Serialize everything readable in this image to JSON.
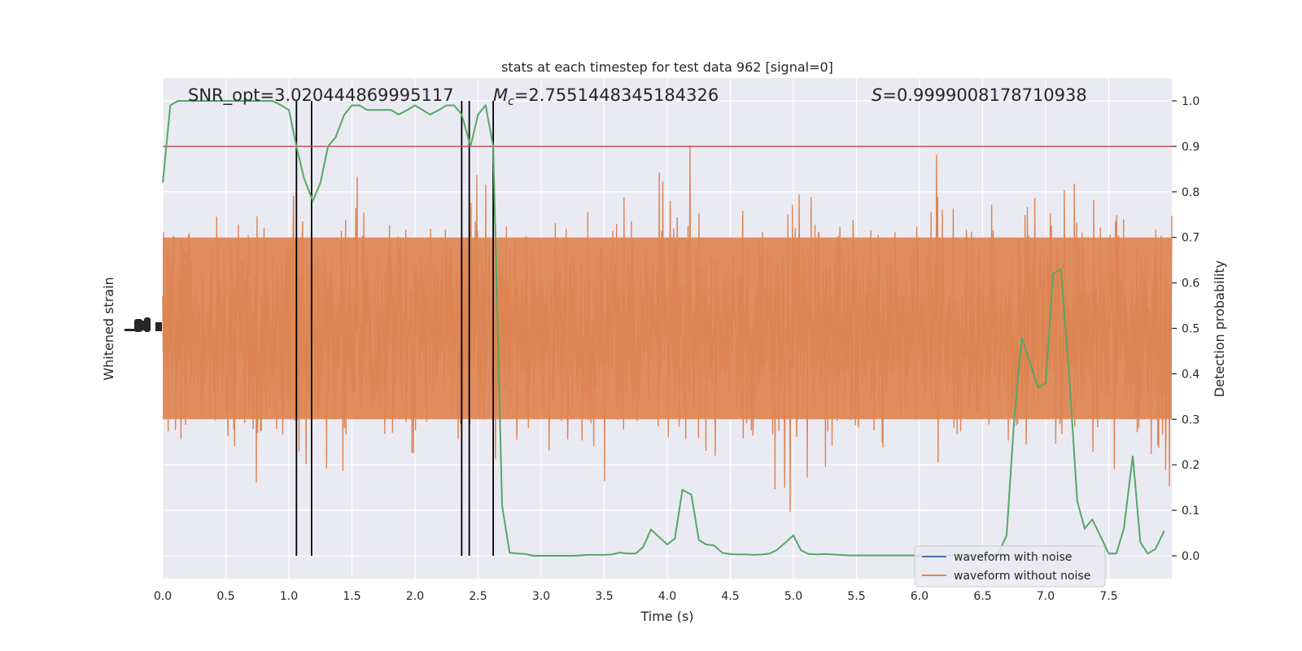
{
  "chart_data": {
    "type": "line",
    "title": "stats at each timestep for test data 962 [signal=0]",
    "xlabel": "Time (s)",
    "ylabel_left": "Whitened strain",
    "ylabel_right": "Detection probability",
    "xlim": [
      0,
      8
    ],
    "ylim_right": [
      -0.05,
      1.05
    ],
    "x_ticks": [
      "0.0",
      "0.5",
      "1.0",
      "1.5",
      "2.0",
      "2.5",
      "3.0",
      "3.5",
      "4.0",
      "4.5",
      "5.0",
      "5.5",
      "6.0",
      "6.5",
      "7.0",
      "7.5"
    ],
    "y_ticks_right": [
      "0.0",
      "0.1",
      "0.2",
      "0.3",
      "0.4",
      "0.5",
      "0.6",
      "0.7",
      "0.8",
      "0.9",
      "1.0"
    ],
    "grid": true,
    "annotations": {
      "snr": "SNR_opt=3.020444869995117",
      "mc_symbol": "M",
      "mc_sub": "c",
      "mc_value": "=2.7551448345184326",
      "s_symbol": "S",
      "s_value": "=0.9999008178710938"
    },
    "threshold": 0.9,
    "vlines": [
      1.06,
      1.18,
      2.37,
      2.43,
      2.62
    ],
    "series": [
      {
        "name": "waveform with noise",
        "color": "#4c72b0",
        "values": []
      },
      {
        "name": "waveform without noise",
        "color": "#dd8452",
        "values": []
      }
    ],
    "detection_probability": {
      "color": "#55a868",
      "x": [
        0.0,
        0.06,
        0.12,
        0.19,
        0.25,
        0.31,
        0.37,
        0.44,
        0.5,
        0.56,
        0.62,
        0.69,
        0.75,
        0.81,
        0.87,
        0.94,
        1.0,
        1.06,
        1.12,
        1.19,
        1.25,
        1.31,
        1.37,
        1.44,
        1.5,
        1.56,
        1.62,
        1.69,
        1.75,
        1.81,
        1.87,
        1.94,
        2.0,
        2.06,
        2.12,
        2.19,
        2.25,
        2.31,
        2.37,
        2.44,
        2.5,
        2.56,
        2.62,
        2.69,
        2.75,
        2.81,
        2.87,
        2.94,
        3.0,
        3.06,
        3.12,
        3.19,
        3.25,
        3.31,
        3.37,
        3.44,
        3.5,
        3.56,
        3.62,
        3.69,
        3.75,
        3.81,
        3.87,
        3.94,
        4.0,
        4.06,
        4.12,
        4.19,
        4.25,
        4.31,
        4.37,
        4.44,
        4.5,
        4.56,
        4.62,
        4.69,
        4.75,
        4.81,
        4.87,
        4.94,
        5.0,
        5.06,
        5.12,
        5.19,
        5.25,
        5.31,
        5.37,
        5.44,
        5.5,
        5.56,
        5.62,
        5.69,
        5.75,
        5.81,
        5.87,
        5.94,
        6.0,
        6.06,
        6.12,
        6.19,
        6.25,
        6.31,
        6.37,
        6.44,
        6.5,
        6.56,
        6.62,
        6.69,
        6.75,
        6.81,
        6.87,
        6.94,
        7.0,
        7.06,
        7.12,
        7.19,
        7.25,
        7.31,
        7.37,
        7.44,
        7.5,
        7.56,
        7.62,
        7.69,
        7.75,
        7.81,
        7.87,
        7.94
      ],
      "y": [
        0.82,
        0.99,
        1.0,
        1.0,
        1.0,
        1.0,
        1.0,
        1.0,
        1.0,
        1.0,
        1.0,
        1.0,
        1.0,
        1.0,
        1.0,
        0.99,
        0.98,
        0.9,
        0.83,
        0.78,
        0.82,
        0.9,
        0.92,
        0.97,
        0.99,
        0.99,
        0.98,
        0.98,
        0.98,
        0.98,
        0.97,
        0.98,
        0.99,
        0.98,
        0.97,
        0.98,
        0.99,
        0.99,
        0.97,
        0.9,
        0.97,
        0.99,
        0.9,
        0.11,
        0.007,
        0.005,
        0.004,
        0.0,
        0.0,
        0.0,
        0.0,
        0.0,
        0.0,
        0.001,
        0.002,
        0.002,
        0.002,
        0.003,
        0.007,
        0.005,
        0.005,
        0.02,
        0.058,
        0.04,
        0.025,
        0.038,
        0.145,
        0.135,
        0.035,
        0.025,
        0.023,
        0.006,
        0.004,
        0.003,
        0.003,
        0.002,
        0.003,
        0.005,
        0.013,
        0.03,
        0.045,
        0.012,
        0.004,
        0.003,
        0.004,
        0.003,
        0.002,
        0.001,
        0.001,
        0.001,
        0.001,
        0.001,
        0.001,
        0.001,
        0.001,
        0.001,
        0.0,
        0.0,
        0.0,
        0.0,
        0.001,
        0.004,
        0.0,
        0.0,
        0.0,
        0.0,
        0.002,
        0.045,
        0.3,
        0.48,
        0.43,
        0.37,
        0.38,
        0.62,
        0.63,
        0.38,
        0.12,
        0.06,
        0.08,
        0.04,
        0.005,
        0.005,
        0.06,
        0.22,
        0.03,
        0.005,
        0.015,
        0.055
      ]
    },
    "legend_position": "lower right"
  }
}
